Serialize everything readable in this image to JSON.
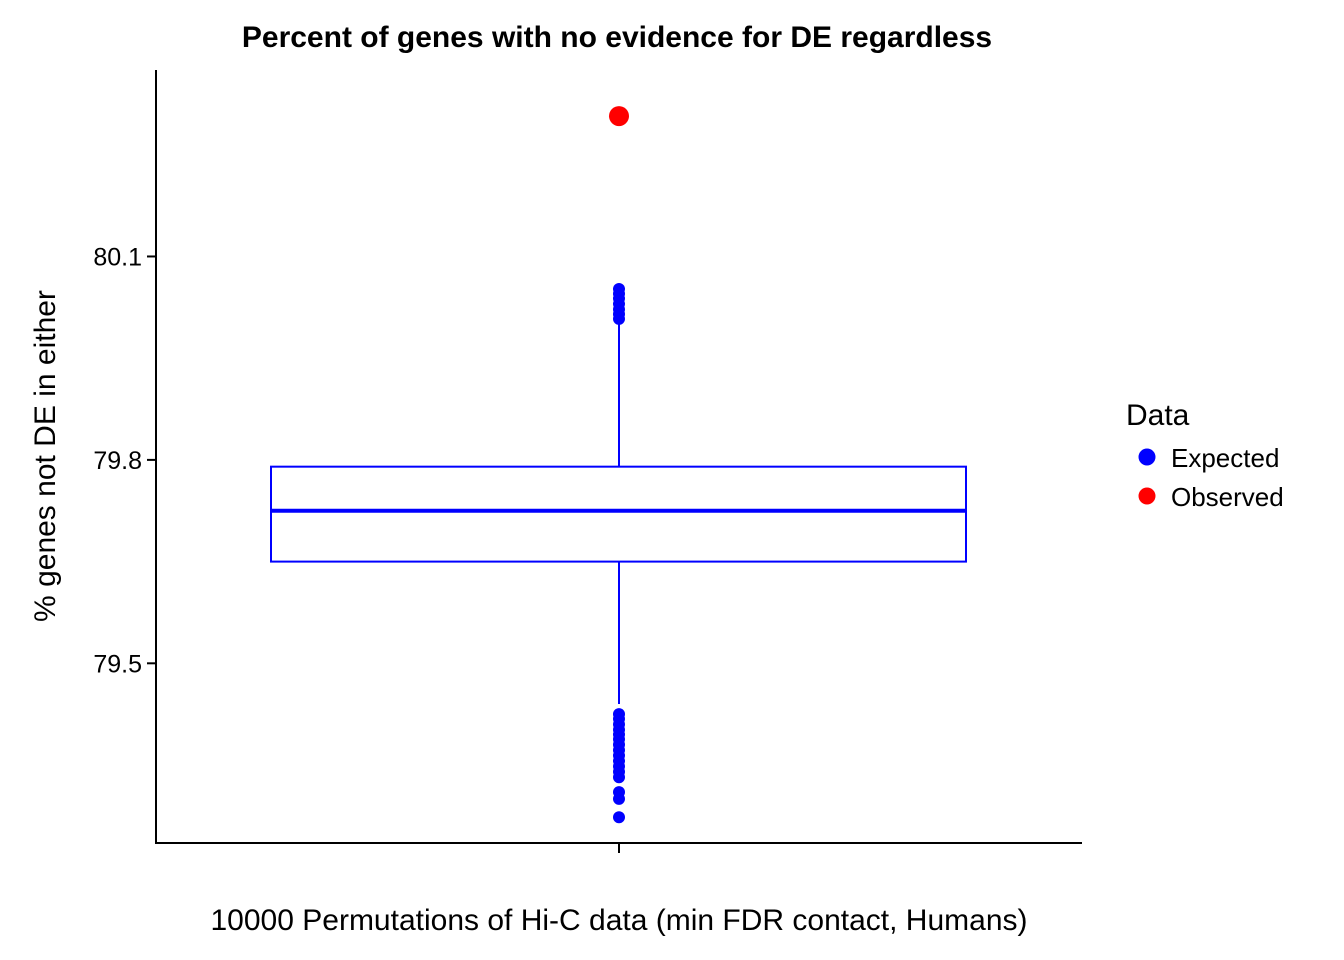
{
  "chart_data": {
    "type": "box",
    "title": "Percent of genes with no evidence for DE regardless",
    "xlabel": "10000 Permutations of Hi-C data (min FDR contact, Humans)",
    "ylabel": "% genes not DE in either",
    "ylim": [
      79.235,
      80.375
    ],
    "y_ticks": [
      79.5,
      79.8,
      80.1
    ],
    "y_tick_labels": [
      "79.5",
      "79.8",
      "80.1"
    ],
    "grid": false,
    "legend": {
      "title": "Data",
      "position": "right",
      "entries": [
        {
          "label": "Expected",
          "color": "#0000ff"
        },
        {
          "label": "Observed",
          "color": "#ff0000"
        }
      ]
    },
    "box": {
      "series": "Expected",
      "color": "#0000ff",
      "lower_whisker": 79.44,
      "q1": 79.65,
      "median": 79.725,
      "q3": 79.79,
      "upper_whisker": 80.0,
      "outliers": [
        80.052,
        80.045,
        80.038,
        80.03,
        80.022,
        80.015,
        80.008,
        79.425,
        79.418,
        79.41,
        79.402,
        79.395,
        79.388,
        79.38,
        79.372,
        79.364,
        79.356,
        79.348,
        79.34,
        79.332,
        79.31,
        79.3,
        79.273
      ]
    },
    "observed": {
      "series": "Observed",
      "color": "#ff0000",
      "value": 80.307
    }
  }
}
